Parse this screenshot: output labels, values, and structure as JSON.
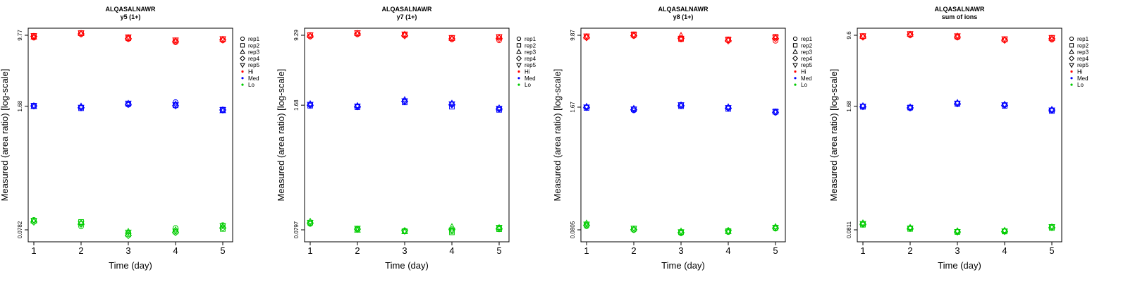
{
  "chart_data": [
    {
      "type": "scatter",
      "title": "ALQASALNAWR",
      "subtitle": "y5 (1+)",
      "xlabel": "Time (day)",
      "ylabel": "Measured (area ratio) [log-scale]",
      "log_y": true,
      "x": [
        1,
        2,
        3,
        4,
        5
      ],
      "x_ticks": [
        "1",
        "2",
        "3",
        "4",
        "5"
      ],
      "y_ticks": [
        "0.0782",
        "1.68",
        "9.77"
      ],
      "grid": false,
      "legend_position": "right",
      "legend": [
        {
          "label": "rep1",
          "marker": "circle"
        },
        {
          "label": "rep2",
          "marker": "square"
        },
        {
          "label": "rep3",
          "marker": "triangle-up"
        },
        {
          "label": "rep4",
          "marker": "diamond"
        },
        {
          "label": "rep5",
          "marker": "triangle-down"
        },
        {
          "label": "Hi",
          "color": "#ff0000"
        },
        {
          "label": "Med",
          "color": "#0000ff"
        },
        {
          "label": "Lo",
          "color": "#00cc00"
        }
      ],
      "series": [
        {
          "name": "Hi",
          "color": "#ff0000",
          "replicates": [
            [
              9.2,
              10.0,
              8.9,
              8.2,
              8.6
            ],
            [
              9.6,
              10.3,
              9.1,
              8.6,
              8.9
            ],
            [
              9.3,
              10.2,
              9.2,
              8.5,
              8.8
            ],
            [
              9.5,
              10.1,
              9.0,
              8.4,
              8.7
            ],
            [
              9.7,
              10.4,
              9.4,
              8.7,
              9.0
            ]
          ]
        },
        {
          "name": "Med",
          "color": "#0000ff",
          "replicates": [
            [
              1.68,
              1.63,
              1.74,
              1.86,
              1.52
            ],
            [
              1.7,
              1.6,
              1.78,
              1.72,
              1.54
            ],
            [
              1.66,
              1.68,
              1.8,
              1.78,
              1.5
            ],
            [
              1.69,
              1.62,
              1.76,
              1.7,
              1.53
            ],
            [
              1.71,
              1.64,
              1.82,
              1.75,
              1.55
            ]
          ]
        },
        {
          "name": "Lo",
          "color": "#00cc00",
          "replicates": [
            [
              0.1,
              0.085,
              0.072,
              0.082,
              0.088
            ],
            [
              0.098,
              0.095,
              0.07,
              0.075,
              0.08
            ],
            [
              0.097,
              0.093,
              0.075,
              0.078,
              0.085
            ],
            [
              0.095,
              0.09,
              0.068,
              0.073,
              0.082
            ],
            [
              0.099,
              0.092,
              0.074,
              0.076,
              0.087
            ]
          ]
        }
      ]
    },
    {
      "type": "scatter",
      "title": "ALQASALNAWR",
      "subtitle": "y7 (1+)",
      "xlabel": "Time (day)",
      "ylabel": "Measured (area ratio) [log-scale]",
      "log_y": true,
      "x": [
        1,
        2,
        3,
        4,
        5
      ],
      "x_ticks": [
        "1",
        "2",
        "3",
        "4",
        "5"
      ],
      "y_ticks": [
        "0.0797",
        "1.68",
        "9.29"
      ],
      "grid": false,
      "legend_position": "right",
      "legend": [
        {
          "label": "rep1",
          "marker": "circle"
        },
        {
          "label": "rep2",
          "marker": "square"
        },
        {
          "label": "rep3",
          "marker": "triangle-up"
        },
        {
          "label": "rep4",
          "marker": "diamond"
        },
        {
          "label": "rep5",
          "marker": "triangle-down"
        },
        {
          "label": "Hi",
          "color": "#ff0000"
        },
        {
          "label": "Med",
          "color": "#0000ff"
        },
        {
          "label": "Lo",
          "color": "#00cc00"
        }
      ],
      "series": [
        {
          "name": "Hi",
          "color": "#ff0000",
          "replicates": [
            [
              9.0,
              9.5,
              9.3,
              8.4,
              8.2
            ],
            [
              9.3,
              9.8,
              9.4,
              8.7,
              8.9
            ],
            [
              9.2,
              9.7,
              9.5,
              8.6,
              8.8
            ],
            [
              9.1,
              9.6,
              9.2,
              8.5,
              8.6
            ],
            [
              9.4,
              9.9,
              9.6,
              8.8,
              9.0
            ]
          ]
        },
        {
          "name": "Med",
          "color": "#0000ff",
          "replicates": [
            [
              1.7,
              1.64,
              1.85,
              1.72,
              1.55
            ],
            [
              1.66,
              1.6,
              1.8,
              1.62,
              1.5
            ],
            [
              1.74,
              1.66,
              1.92,
              1.76,
              1.57
            ],
            [
              1.68,
              1.62,
              1.84,
              1.7,
              1.53
            ],
            [
              1.72,
              1.65,
              1.88,
              1.74,
              1.56
            ]
          ]
        },
        {
          "name": "Lo",
          "color": "#00cc00",
          "replicates": [
            [
              0.092,
              0.082,
              0.078,
              0.077,
              0.083
            ],
            [
              0.095,
              0.08,
              0.077,
              0.075,
              0.081
            ],
            [
              0.098,
              0.079,
              0.076,
              0.086,
              0.084
            ],
            [
              0.094,
              0.081,
              0.078,
              0.08,
              0.082
            ],
            [
              0.096,
              0.083,
              0.077,
              0.079,
              0.085
            ]
          ]
        }
      ]
    },
    {
      "type": "scatter",
      "title": "ALQASALNAWR",
      "subtitle": "y8 (1+)",
      "xlabel": "Time (day)",
      "ylabel": "Measured (area ratio) [log-scale]",
      "log_y": true,
      "x": [
        1,
        2,
        3,
        4,
        5
      ],
      "x_ticks": [
        "1",
        "2",
        "3",
        "4",
        "5"
      ],
      "y_ticks": [
        "0.0805",
        "1.67",
        "9.87"
      ],
      "grid": false,
      "legend_position": "right",
      "legend": [
        {
          "label": "rep1",
          "marker": "circle"
        },
        {
          "label": "rep2",
          "marker": "square"
        },
        {
          "label": "rep3",
          "marker": "triangle-up"
        },
        {
          "label": "rep4",
          "marker": "diamond"
        },
        {
          "label": "rep5",
          "marker": "triangle-down"
        },
        {
          "label": "Hi",
          "color": "#ff0000"
        },
        {
          "label": "Med",
          "color": "#0000ff"
        },
        {
          "label": "Lo",
          "color": "#00cc00"
        }
      ],
      "series": [
        {
          "name": "Hi",
          "color": "#ff0000",
          "replicates": [
            [
              9.4,
              9.7,
              8.9,
              8.7,
              8.6
            ],
            [
              9.6,
              10.1,
              9.0,
              8.9,
              9.5
            ],
            [
              9.5,
              9.9,
              9.8,
              8.8,
              9.3
            ],
            [
              9.3,
              9.8,
              9.1,
              8.6,
              9.1
            ],
            [
              9.7,
              10.0,
              9.2,
              8.9,
              9.4
            ]
          ]
        },
        {
          "name": "Med",
          "color": "#0000ff",
          "replicates": [
            [
              1.67,
              1.54,
              1.73,
              1.65,
              1.46
            ],
            [
              1.64,
              1.58,
              1.71,
              1.6,
              1.5
            ],
            [
              1.7,
              1.62,
              1.76,
              1.68,
              1.48
            ],
            [
              1.66,
              1.57,
              1.74,
              1.63,
              1.47
            ],
            [
              1.68,
              1.6,
              1.78,
              1.66,
              1.5
            ]
          ]
        },
        {
          "name": "Lo",
          "color": "#00cc00",
          "replicates": [
            [
              0.088,
              0.08,
              0.074,
              0.076,
              0.083
            ],
            [
              0.092,
              0.083,
              0.076,
              0.078,
              0.085
            ],
            [
              0.095,
              0.082,
              0.078,
              0.077,
              0.087
            ],
            [
              0.09,
              0.081,
              0.075,
              0.079,
              0.084
            ],
            [
              0.093,
              0.084,
              0.077,
              0.078,
              0.086
            ]
          ]
        }
      ]
    },
    {
      "type": "scatter",
      "title": "ALQASALNAWR",
      "subtitle": "sum of ions",
      "xlabel": "Time (day)",
      "ylabel": "Measured (area ratio) [log-scale]",
      "log_y": true,
      "x": [
        1,
        2,
        3,
        4,
        5
      ],
      "x_ticks": [
        "1",
        "2",
        "3",
        "4",
        "5"
      ],
      "y_ticks": [
        "0.0811",
        "1.68",
        "9.6"
      ],
      "grid": false,
      "legend_position": "right",
      "legend": [
        {
          "label": "rep1",
          "marker": "circle"
        },
        {
          "label": "rep2",
          "marker": "square"
        },
        {
          "label": "rep3",
          "marker": "triangle-up"
        },
        {
          "label": "rep4",
          "marker": "diamond"
        },
        {
          "label": "rep5",
          "marker": "triangle-down"
        },
        {
          "label": "Hi",
          "color": "#ff0000"
        },
        {
          "label": "Med",
          "color": "#0000ff"
        },
        {
          "label": "Lo",
          "color": "#00cc00"
        }
      ],
      "series": [
        {
          "name": "Hi",
          "color": "#ff0000",
          "replicates": [
            [
              9.2,
              9.6,
              9.1,
              8.5,
              8.6
            ],
            [
              9.4,
              9.9,
              9.3,
              8.7,
              9.0
            ],
            [
              9.3,
              9.8,
              9.4,
              8.6,
              8.9
            ],
            [
              9.2,
              9.7,
              9.2,
              8.5,
              8.8
            ],
            [
              9.5,
              10.0,
              9.5,
              8.8,
              9.1
            ]
          ]
        },
        {
          "name": "Med",
          "color": "#0000ff",
          "replicates": [
            [
              1.68,
              1.6,
              1.8,
              1.74,
              1.52
            ],
            [
              1.66,
              1.63,
              1.78,
              1.7,
              1.5
            ],
            [
              1.7,
              1.65,
              1.84,
              1.76,
              1.55
            ],
            [
              1.67,
              1.62,
              1.79,
              1.72,
              1.53
            ],
            [
              1.69,
              1.64,
              1.82,
              1.75,
              1.54
            ]
          ]
        },
        {
          "name": "Lo",
          "color": "#00cc00",
          "replicates": [
            [
              0.094,
              0.085,
              0.078,
              0.079,
              0.086
            ],
            [
              0.092,
              0.083,
              0.077,
              0.078,
              0.085
            ],
            [
              0.096,
              0.086,
              0.079,
              0.08,
              0.087
            ],
            [
              0.093,
              0.084,
              0.077,
              0.078,
              0.086
            ],
            [
              0.095,
              0.085,
              0.078,
              0.079,
              0.088
            ]
          ]
        }
      ]
    }
  ]
}
